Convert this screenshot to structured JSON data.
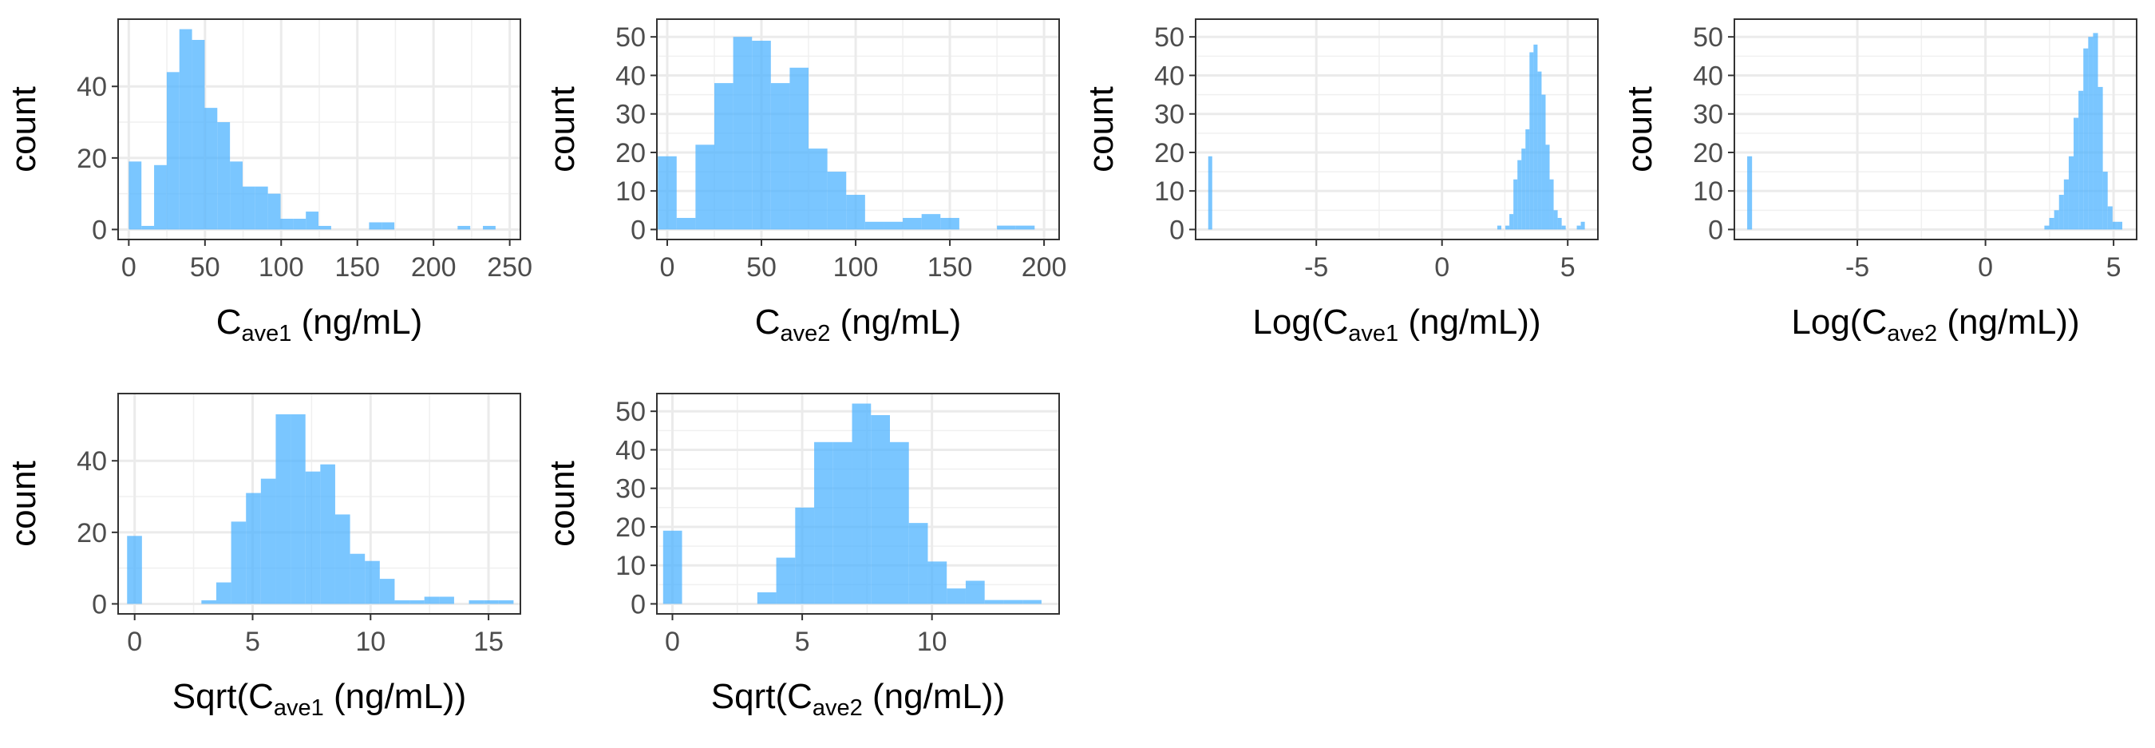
{
  "figure": {
    "type": "facet-grid",
    "bar_color": "#4db3ff"
  },
  "chart_data": [
    {
      "type": "bar",
      "title": "",
      "xlabel": {
        "pre": "C",
        "sub": "ave1",
        "post": " (ng/mL)"
      },
      "ylabel": "count",
      "xlim": [
        -7,
        257
      ],
      "ylim": [
        -2.8,
        58.8
      ],
      "xticks": [
        0,
        50,
        100,
        150,
        200,
        250
      ],
      "xtick_labels": [
        "0",
        "50",
        "100",
        "150",
        "200",
        "250"
      ],
      "yticks": [
        0,
        20,
        40
      ],
      "ytick_labels": [
        "0",
        "20",
        "40"
      ],
      "binwidth": 8.3,
      "bins": [
        [
          0,
          19
        ],
        [
          8.3,
          1
        ],
        [
          16.6,
          18
        ],
        [
          24.9,
          44
        ],
        [
          33.2,
          56
        ],
        [
          41.5,
          53
        ],
        [
          49.8,
          34
        ],
        [
          58.1,
          30
        ],
        [
          66.4,
          19
        ],
        [
          74.7,
          12
        ],
        [
          83,
          12
        ],
        [
          91.3,
          10
        ],
        [
          99.6,
          3
        ],
        [
          107.9,
          3
        ],
        [
          116.2,
          5
        ],
        [
          124.5,
          1
        ],
        [
          157.7,
          2
        ],
        [
          166,
          2
        ],
        [
          215.8,
          1
        ],
        [
          232.4,
          1
        ]
      ]
    },
    {
      "type": "bar",
      "title": "",
      "xlabel": {
        "pre": "C",
        "sub": "ave2",
        "post": " (ng/mL)"
      },
      "ylabel": "count",
      "xlim": [
        -5.5,
        208
      ],
      "ylim": [
        -2.6,
        54.6
      ],
      "xticks": [
        0,
        50,
        100,
        150,
        200
      ],
      "xtick_labels": [
        "0",
        "50",
        "100",
        "150",
        "200"
      ],
      "yticks": [
        0,
        10,
        20,
        30,
        40,
        50
      ],
      "ytick_labels": [
        "0",
        "10",
        "20",
        "30",
        "40",
        "50"
      ],
      "binwidth": 10,
      "bins": [
        [
          -5,
          19
        ],
        [
          5,
          3
        ],
        [
          15,
          22
        ],
        [
          25,
          38
        ],
        [
          35,
          50
        ],
        [
          45,
          49
        ],
        [
          55,
          38
        ],
        [
          65,
          42
        ],
        [
          75,
          21
        ],
        [
          85,
          15
        ],
        [
          95,
          9
        ],
        [
          105,
          2
        ],
        [
          115,
          2
        ],
        [
          125,
          3
        ],
        [
          135,
          4
        ],
        [
          145,
          3
        ],
        [
          175,
          1
        ],
        [
          185,
          1
        ]
      ]
    },
    {
      "type": "bar",
      "title": "",
      "xlabel": {
        "pre": "Log(C",
        "sub": "ave1",
        "post": " (ng/mL))"
      },
      "ylabel": "count",
      "xlim": [
        -9.8,
        6.2
      ],
      "ylim": [
        -2.6,
        54.6
      ],
      "xticks": [
        -5,
        0,
        5
      ],
      "xtick_labels": [
        "-5",
        "0",
        "5"
      ],
      "yticks": [
        0,
        10,
        20,
        30,
        40,
        50
      ],
      "ytick_labels": [
        "0",
        "10",
        "20",
        "30",
        "40",
        "50"
      ],
      "binwidth": 0.16,
      "bins": [
        [
          -9.3,
          19
        ],
        [
          2.2,
          1
        ],
        [
          2.52,
          1
        ],
        [
          2.68,
          4
        ],
        [
          2.84,
          13
        ],
        [
          3,
          18
        ],
        [
          3.16,
          21
        ],
        [
          3.32,
          26
        ],
        [
          3.48,
          46
        ],
        [
          3.64,
          48
        ],
        [
          3.8,
          41
        ],
        [
          3.96,
          35
        ],
        [
          4.12,
          22
        ],
        [
          4.28,
          13
        ],
        [
          4.44,
          5
        ],
        [
          4.6,
          3
        ],
        [
          4.76,
          1
        ],
        [
          5.36,
          1
        ],
        [
          5.52,
          2
        ]
      ]
    },
    {
      "type": "bar",
      "title": "",
      "xlabel": {
        "pre": "Log(C",
        "sub": "ave2",
        "post": " (ng/mL))"
      },
      "ylabel": "count",
      "xlim": [
        -9.8,
        5.9
      ],
      "ylim": [
        -2.6,
        54.6
      ],
      "xticks": [
        -5,
        0,
        5
      ],
      "xtick_labels": [
        "-5",
        "0",
        "5"
      ],
      "yticks": [
        0,
        10,
        20,
        30,
        40,
        50
      ],
      "ytick_labels": [
        "0",
        "10",
        "20",
        "30",
        "40",
        "50"
      ],
      "binwidth": 0.19,
      "bins": [
        [
          -9.3,
          19
        ],
        [
          2.3,
          1
        ],
        [
          2.49,
          3
        ],
        [
          2.68,
          5
        ],
        [
          2.87,
          9
        ],
        [
          3.06,
          13
        ],
        [
          3.25,
          19
        ],
        [
          3.44,
          29
        ],
        [
          3.63,
          36
        ],
        [
          3.82,
          47
        ],
        [
          4.01,
          50
        ],
        [
          4.2,
          51
        ],
        [
          4.39,
          37
        ],
        [
          4.58,
          15
        ],
        [
          4.77,
          6
        ],
        [
          4.96,
          2
        ],
        [
          5.15,
          2
        ]
      ]
    },
    {
      "type": "bar",
      "title": "",
      "xlabel": {
        "pre": "Sqrt(C",
        "sub": "ave1",
        "post": " (ng/mL))"
      },
      "ylabel": "count",
      "xlim": [
        -0.7,
        16.35
      ],
      "ylim": [
        -2.8,
        58.8
      ],
      "xticks": [
        0,
        5,
        10,
        15
      ],
      "xtick_labels": [
        "0",
        "5",
        "10",
        "15"
      ],
      "yticks": [
        0,
        20,
        40
      ],
      "ytick_labels": [
        "0",
        "20",
        "40"
      ],
      "binwidth": 0.63,
      "bins": [
        [
          -0.32,
          19
        ],
        [
          2.83,
          1
        ],
        [
          3.46,
          6
        ],
        [
          4.09,
          23
        ],
        [
          4.72,
          31
        ],
        [
          5.35,
          35
        ],
        [
          5.98,
          53
        ],
        [
          6.61,
          53
        ],
        [
          7.24,
          37
        ],
        [
          7.87,
          39
        ],
        [
          8.5,
          25
        ],
        [
          9.13,
          14
        ],
        [
          9.76,
          12
        ],
        [
          10.39,
          7
        ],
        [
          11.02,
          1
        ],
        [
          11.65,
          1
        ],
        [
          12.28,
          2
        ],
        [
          12.91,
          2
        ],
        [
          14.17,
          1
        ],
        [
          14.8,
          1
        ],
        [
          15.43,
          1
        ]
      ]
    },
    {
      "type": "bar",
      "title": "",
      "xlabel": {
        "pre": "Sqrt(C",
        "sub": "ave2",
        "post": " (ng/mL))"
      },
      "ylabel": "count",
      "xlim": [
        -0.6,
        14.9
      ],
      "ylim": [
        -2.6,
        54.6
      ],
      "xticks": [
        0,
        5,
        10
      ],
      "xtick_labels": [
        "0",
        "5",
        "10"
      ],
      "yticks": [
        0,
        10,
        20,
        30,
        40,
        50
      ],
      "ytick_labels": [
        "0",
        "10",
        "20",
        "30",
        "40",
        "50"
      ],
      "binwidth": 0.73,
      "bins": [
        [
          -0.36,
          19
        ],
        [
          3.27,
          3
        ],
        [
          4,
          12
        ],
        [
          4.73,
          25
        ],
        [
          5.46,
          42
        ],
        [
          6.19,
          42
        ],
        [
          6.92,
          52
        ],
        [
          7.65,
          49
        ],
        [
          8.38,
          42
        ],
        [
          9.11,
          21
        ],
        [
          9.84,
          11
        ],
        [
          10.57,
          4
        ],
        [
          11.3,
          6
        ],
        [
          12.03,
          1
        ],
        [
          12.76,
          1
        ],
        [
          13.49,
          1
        ]
      ]
    }
  ]
}
